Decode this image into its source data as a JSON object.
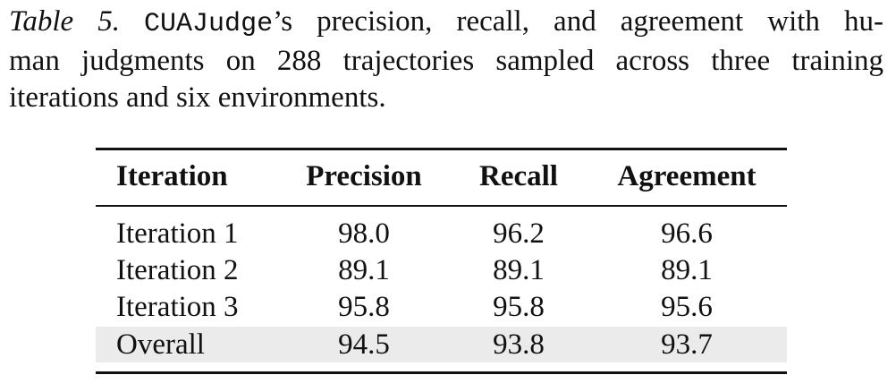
{
  "caption": {
    "label": "Table 5.",
    "code": "CUAJudge",
    "lines": [
      "’s precision, recall, and agreement with hu-",
      "man judgments on 288 trajectories sampled across three training",
      "iterations and six environments."
    ]
  },
  "table": {
    "header": [
      "Iteration",
      "Precision",
      "Recall",
      "Agreement"
    ],
    "rows": [
      [
        "Iteration 1",
        "98.0",
        "96.2",
        "96.6"
      ],
      [
        "Iteration 2",
        "89.1",
        "89.1",
        "89.1"
      ],
      [
        "Iteration 3",
        "95.8",
        "95.8",
        "95.6"
      ],
      [
        "Overall",
        "94.5",
        "93.8",
        "93.7"
      ]
    ],
    "highlight_row": 3
  }
}
